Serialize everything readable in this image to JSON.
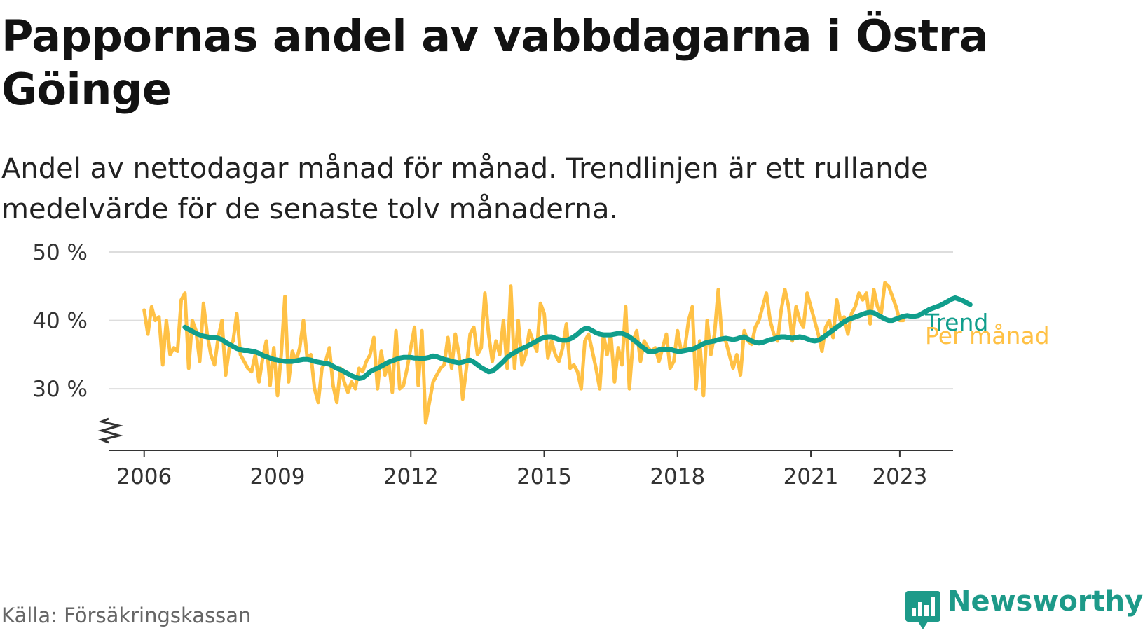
{
  "title": "Pappornas andel av vabbdagarna i Östra Göinge",
  "subtitle": "Andel av nettodagar månad för månad. Trendlinjen är ett rullande medelvärde för de senaste tolv månaderna.",
  "source": "Källa: Försäkringskassan",
  "brand": "Newsworthy",
  "colors": {
    "monthly": "#ffc145",
    "trend": "#109e8c",
    "grid": "#dddddd",
    "axis": "#333333",
    "brand": "#1d9a89"
  },
  "chart_data": {
    "type": "line",
    "x_unit": "year",
    "xlim": [
      2005.2,
      2024.2
    ],
    "ylim": [
      21,
      50
    ],
    "y_ticks": [
      30,
      40,
      50
    ],
    "y_tick_labels": [
      "30 %",
      "40 %",
      "50 %"
    ],
    "y_axis_break": true,
    "x_ticks": [
      2006,
      2009,
      2012,
      2015,
      2018,
      2021,
      2023
    ],
    "x_tick_labels": [
      "2006",
      "2009",
      "2012",
      "2015",
      "2018",
      "2021",
      "2023"
    ],
    "grid": "horizontal",
    "series": [
      {
        "name": "Per månad",
        "x_start": 2006.0,
        "step": 0.08333,
        "values": [
          41.5,
          38,
          42,
          40,
          40.5,
          33.5,
          40,
          35,
          36,
          35.5,
          43,
          44,
          33,
          40,
          38.5,
          34,
          42.5,
          38,
          35,
          33.5,
          37.5,
          40,
          32,
          36,
          37,
          41,
          35,
          34,
          33,
          32.5,
          35,
          31,
          34.5,
          37,
          30.5,
          36,
          29,
          35,
          43.5,
          31,
          35.5,
          34,
          36,
          40,
          34.5,
          35,
          30,
          28,
          33,
          34,
          36,
          30.5,
          28,
          33,
          31,
          29.5,
          31,
          30,
          33,
          32.5,
          34,
          35,
          37.5,
          30,
          35.5,
          32,
          34,
          29.5,
          38.5,
          30,
          30.5,
          33,
          36,
          39,
          30.5,
          38.5,
          25,
          28,
          31,
          32,
          33,
          33.5,
          37.5,
          33,
          38,
          35,
          28.5,
          33,
          38,
          39,
          35,
          36,
          44,
          38,
          34,
          37,
          35,
          40,
          33,
          45,
          33,
          40,
          33.5,
          35,
          38.5,
          37,
          35.5,
          42.5,
          41,
          34.5,
          37,
          35,
          34,
          36,
          39.5,
          33,
          33.5,
          32.5,
          30,
          37,
          38,
          35.5,
          33,
          30,
          38,
          35,
          38,
          31,
          36,
          33.5,
          42,
          30,
          37,
          38.5,
          34,
          37,
          36,
          35.5,
          36,
          34,
          36,
          38,
          33,
          34,
          38.5,
          35.5,
          36,
          40,
          42,
          30,
          37,
          29,
          40,
          35,
          38,
          44.5,
          37.5,
          37,
          35,
          33,
          35,
          32,
          38.5,
          37,
          36.5,
          39,
          40,
          42,
          44,
          40,
          38,
          37,
          41.5,
          44.5,
          42,
          37,
          42,
          40,
          39,
          44,
          42,
          40,
          38,
          35.5,
          39,
          40,
          37.5,
          43,
          40,
          40.5,
          38,
          41,
          42,
          44,
          43,
          44,
          39.5,
          44.5,
          42,
          41,
          45.5,
          45,
          43.5,
          42,
          40,
          40
        ]
      },
      {
        "name": "Trend",
        "x_start": 2006.917,
        "step": 0.08333,
        "values": [
          39,
          38.7,
          38.4,
          38.1,
          37.9,
          37.7,
          37.6,
          37.5,
          37.5,
          37.4,
          37.2,
          36.8,
          36.5,
          36.2,
          35.9,
          35.7,
          35.6,
          35.6,
          35.5,
          35.4,
          35.2,
          34.9,
          34.7,
          34.5,
          34.3,
          34.2,
          34.1,
          34,
          34,
          34,
          34.1,
          34.2,
          34.3,
          34.3,
          34.2,
          34,
          33.9,
          33.8,
          33.7,
          33.6,
          33.3,
          33,
          32.8,
          32.5,
          32.2,
          31.9,
          31.7,
          31.5,
          31.6,
          32,
          32.5,
          32.8,
          33,
          33.3,
          33.6,
          33.9,
          34.1,
          34.3,
          34.5,
          34.6,
          34.6,
          34.6,
          34.5,
          34.5,
          34.4,
          34.5,
          34.6,
          34.8,
          34.7,
          34.5,
          34.3,
          34.2,
          34,
          33.9,
          33.8,
          33.9,
          34.1,
          34.2,
          33.9,
          33.5,
          33.1,
          32.8,
          32.5,
          32.6,
          33,
          33.5,
          34,
          34.6,
          35,
          35.3,
          35.6,
          35.9,
          36.1,
          36.4,
          36.7,
          37,
          37.3,
          37.5,
          37.6,
          37.6,
          37.4,
          37.2,
          37.1,
          37.1,
          37.3,
          37.6,
          38,
          38.5,
          38.8,
          38.8,
          38.5,
          38.2,
          38,
          37.9,
          37.9,
          37.9,
          38,
          38.1,
          38.1,
          37.9,
          37.6,
          37.2,
          36.8,
          36.3,
          35.9,
          35.5,
          35.4,
          35.5,
          35.7,
          35.8,
          35.8,
          35.8,
          35.6,
          35.5,
          35.5,
          35.6,
          35.7,
          35.8,
          36,
          36.3,
          36.6,
          36.8,
          36.9,
          37,
          37.2,
          37.3,
          37.4,
          37.3,
          37.2,
          37.3,
          37.5,
          37.6,
          37.3,
          37,
          36.8,
          36.7,
          36.8,
          37,
          37.2,
          37.3,
          37.5,
          37.6,
          37.6,
          37.5,
          37.4,
          37.5,
          37.6,
          37.5,
          37.3,
          37.1,
          37,
          37.1,
          37.4,
          37.8,
          38.2,
          38.6,
          39,
          39.4,
          39.8,
          40.1,
          40.3,
          40.5,
          40.7,
          40.9,
          41.1,
          41.2,
          41.1,
          40.8,
          40.5,
          40.2,
          40,
          40,
          40.2,
          40.4,
          40.6,
          40.7,
          40.6,
          40.6,
          40.7,
          41,
          41.3,
          41.6,
          41.8,
          42,
          42.2,
          42.5,
          42.8,
          43.1,
          43.3,
          43.1,
          42.9,
          42.6,
          42.3
        ]
      }
    ]
  }
}
